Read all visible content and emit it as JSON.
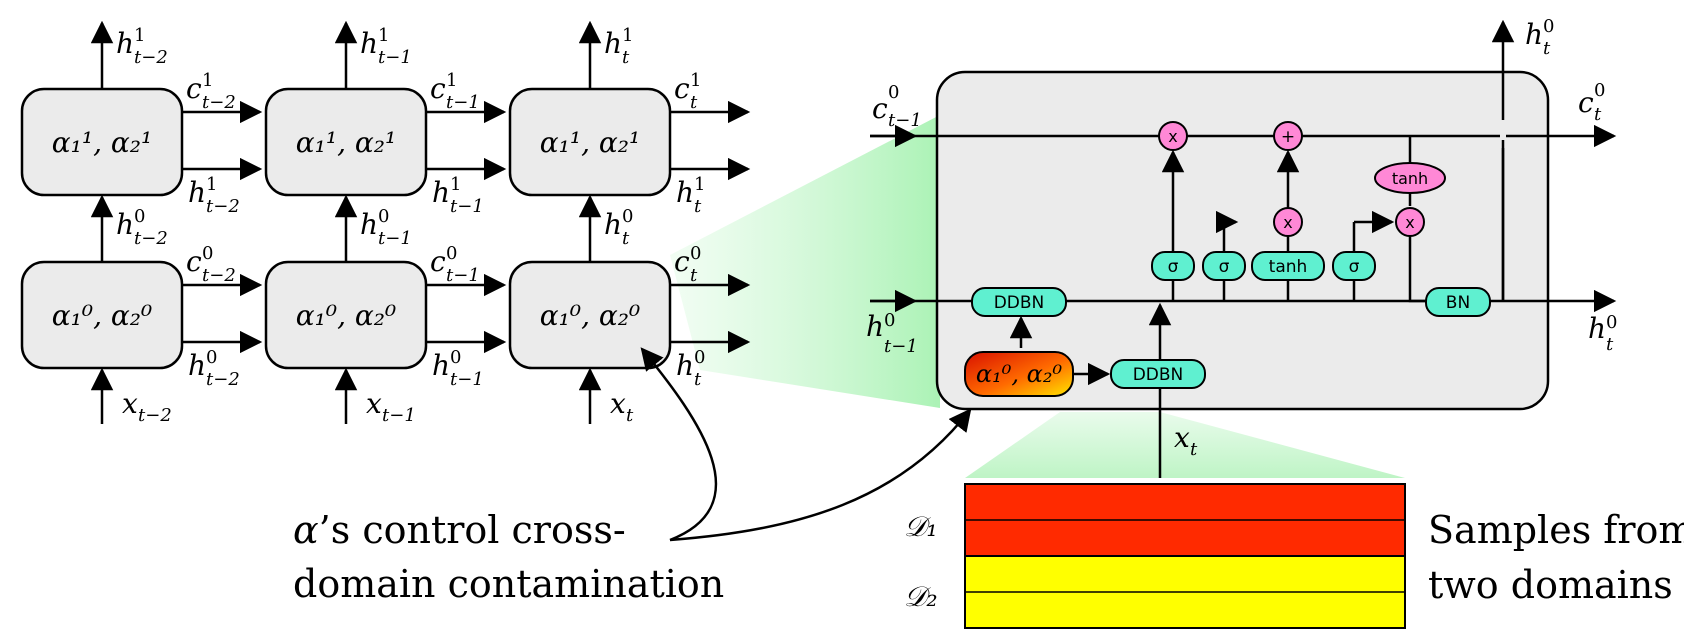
{
  "colors": {
    "cell_fill": "#ececec",
    "cell_stroke": "#000000",
    "ddbn_fill": "#5ff0d0",
    "op_fill": "#ff88d6",
    "alpha_gradient_start": "#e01000",
    "alpha_gradient_end": "#ffe000",
    "domain1_fill": "#ff2a00",
    "domain2_fill": "#ffff00",
    "zoom_fill": "#b6f5c0"
  },
  "grid": {
    "top_cells": [
      {
        "label_base": "α",
        "label_text": "α₁¹, α₂¹"
      },
      {
        "label_base": "α",
        "label_text": "α₁¹, α₂¹"
      },
      {
        "label_base": "α",
        "label_text": "α₁¹, α₂¹"
      }
    ],
    "bottom_cells": [
      {
        "label_text": "α₁⁰, α₂⁰"
      },
      {
        "label_text": "α₁⁰, α₂⁰"
      },
      {
        "label_text": "α₁⁰, α₂⁰"
      }
    ],
    "top_out_h": [
      "t−2",
      "t−1",
      "t"
    ],
    "inputs_x": [
      "t−2",
      "t−1",
      "t"
    ],
    "symbols": {
      "h": "h",
      "c": "c",
      "x": "x",
      "sup_top": "1",
      "sup_bottom": "0"
    }
  },
  "lstm": {
    "c_prev_sup": "0",
    "c_prev_sub": "t−1",
    "h_prev_sup": "0",
    "h_prev_sub": "t−1",
    "c_out_sup": "0",
    "c_out_sub": "t",
    "h_out_sup": "0",
    "h_out_sub": "t",
    "h_top_sup": "0",
    "h_top_sub": "t",
    "x_in_sub": "t",
    "ops": {
      "mult": "x",
      "add": "+",
      "tanh": "tanh",
      "sigma": "σ",
      "ddbn": "DDBN",
      "bn": "BN"
    },
    "alpha_label": "α₁⁰, α₂⁰"
  },
  "domains": {
    "d1": "𝒟₁",
    "d2": "𝒟₂",
    "caption_line1": "Samples from",
    "caption_line2": "two domains"
  },
  "caption": {
    "line1_prefix": "α",
    "line1_rest": "’s control cross-",
    "line2": "domain contamination"
  }
}
